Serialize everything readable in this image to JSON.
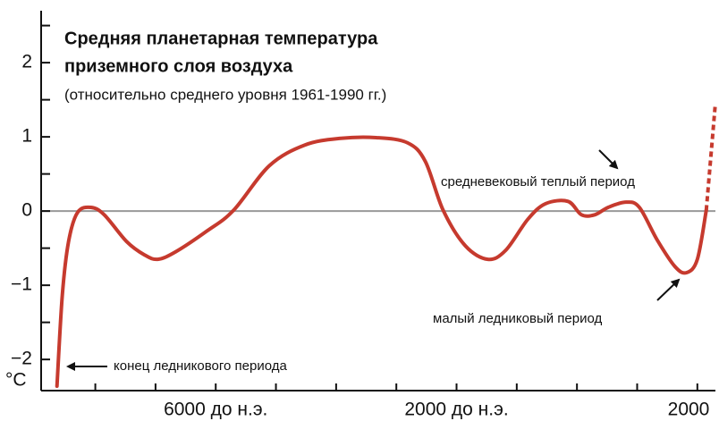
{
  "chart_data": {
    "type": "line",
    "title": "Средняя планетарная температура",
    "title_line2": "приземного слоя воздуха",
    "subtitle": "(относительно среднего уровня 1961-1990 гг.)",
    "y_unit": "°C",
    "xlim": [
      -8900,
      2300
    ],
    "ylim": [
      -2.42,
      2.7
    ],
    "xticks": [
      {
        "value": -6000,
        "label": "6000 до н.э."
      },
      {
        "value": -2000,
        "label": "2000 до н.э."
      },
      {
        "value": 2000,
        "label": "2000"
      }
    ],
    "xticks_minor": [
      -8000,
      -7000,
      -5000,
      -4000,
      -3000,
      -1000,
      0,
      1000
    ],
    "yticks": [
      {
        "value": -2,
        "label": "−2"
      },
      {
        "value": -1,
        "label": "−1"
      },
      0,
      1,
      2
    ],
    "yticks_minor": [
      -1.5,
      -0.5,
      0.5,
      1.5,
      2.5
    ],
    "zero_line": true,
    "series": [
      {
        "color": "#c63a2e",
        "style": "solid",
        "x": [
          -8637,
          -8548,
          -8444,
          -8296,
          -8074,
          -7852,
          -7481,
          -7185,
          -6963,
          -6667,
          -6148,
          -5704,
          -5111,
          -4519,
          -3926,
          -3333,
          -2815,
          -2519,
          -2222,
          -1852,
          -1481,
          -1185,
          -815,
          -519,
          -148,
          74,
          296,
          519,
          815,
          1037,
          1333,
          1630,
          1822,
          2000,
          2148
        ],
        "values": [
          -2.36,
          -1.13,
          -0.41,
          -0.02,
          0.05,
          -0.05,
          -0.41,
          -0.59,
          -0.65,
          -0.55,
          -0.27,
          0.01,
          0.61,
          0.89,
          0.98,
          0.99,
          0.92,
          0.67,
          0.01,
          -0.47,
          -0.65,
          -0.53,
          -0.11,
          0.1,
          0.13,
          -0.05,
          -0.05,
          0.05,
          0.12,
          0.05,
          -0.39,
          -0.75,
          -0.83,
          -0.65,
          0.01
        ]
      },
      {
        "color": "#c63a2e",
        "style": "dashed",
        "x": [
          2148,
          2296
        ],
        "values": [
          0.01,
          1.42
        ]
      }
    ],
    "annotations": [
      {
        "text": "средневековый теплый период"
      },
      {
        "text": "малый ледниковый период"
      },
      {
        "text": "конец ледникового периода"
      }
    ]
  }
}
